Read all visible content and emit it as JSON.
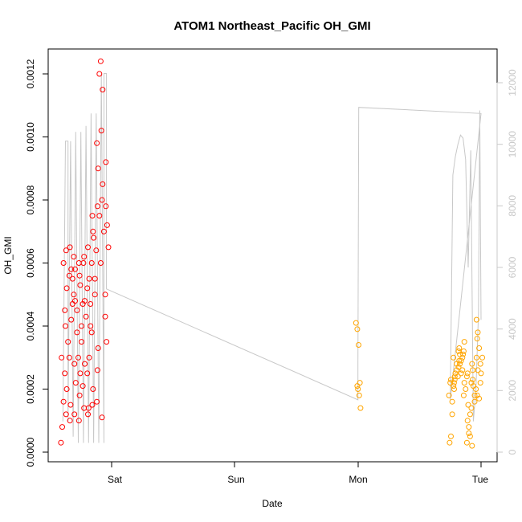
{
  "chart_data": {
    "type": "scatter",
    "title": "ATOM1 Northeast_Pacific OH_GMI",
    "xlabel": "Date",
    "ylabel": "OH_GMI",
    "x_ticks": [
      "Sat",
      "Sun",
      "Mon",
      "Tue"
    ],
    "xlim": [
      "Fri 14:00",
      "Tue 03:00"
    ],
    "ylim": [
      0,
      0.00125
    ],
    "y_ticks": [
      "0.0000",
      "0.0002",
      "0.0004",
      "0.0006",
      "0.0008",
      "0.0010",
      "0.0012"
    ],
    "y2lim": [
      0,
      12500
    ],
    "y2_ticks": [
      "0",
      "2000",
      "4000",
      "6000",
      "8000",
      "10000",
      "12000"
    ],
    "grid": false,
    "colors": {
      "series_a": "#ff0000",
      "series_b": "#ffa500",
      "altitude": "#c8c8c8"
    },
    "series": [
      {
        "marker": "circle",
        "color": "#ff0000",
        "points": [
          [
            "Fri 14:30",
            3e-05
          ],
          [
            "Fri 14:30",
            8e-05
          ],
          [
            "Fri 14:30",
            0.00016
          ],
          [
            "Fri 14:30",
            0.00025
          ],
          [
            "Fri 14:30",
            0.0003
          ],
          [
            "Fri 15:00",
            0.0004
          ],
          [
            "Fri 15:00",
            0.00052
          ],
          [
            "Fri 15:00",
            0.0006
          ],
          [
            "Fri 15:00",
            0.00045
          ],
          [
            "Fri 15:00",
            0.00012
          ],
          [
            "Fri 15:30",
            0.0001
          ],
          [
            "Fri 15:30",
            0.0002
          ],
          [
            "Fri 15:30",
            0.00035
          ],
          [
            "Fri 15:30",
            0.00056
          ],
          [
            "Fri 15:30",
            0.00064
          ],
          [
            "Fri 16:00",
            0.00065
          ],
          [
            "Fri 16:00",
            0.00058
          ],
          [
            "Fri 16:00",
            0.00047
          ],
          [
            "Fri 16:00",
            0.0003
          ],
          [
            "Fri 16:00",
            0.00015
          ],
          [
            "Fri 16:30",
            0.00028
          ],
          [
            "Fri 16:30",
            0.00042
          ],
          [
            "Fri 16:30",
            0.00055
          ],
          [
            "Fri 16:30",
            0.00062
          ],
          [
            "Fri 16:30",
            0.00048
          ],
          [
            "Fri 17:00",
            0.00012
          ],
          [
            "Fri 17:00",
            0.00022
          ],
          [
            "Fri 17:00",
            0.00038
          ],
          [
            "Fri 17:00",
            0.0005
          ],
          [
            "Fri 17:00",
            0.00058
          ],
          [
            "Fri 17:30",
            0.0006
          ],
          [
            "Fri 17:30",
            0.00053
          ],
          [
            "Fri 17:30",
            0.00045
          ],
          [
            "Fri 17:30",
            0.0003
          ],
          [
            "Fri 17:30",
            0.00018
          ],
          [
            "Fri 18:00",
            0.0001
          ],
          [
            "Fri 18:00",
            0.00025
          ],
          [
            "Fri 18:00",
            0.0004
          ],
          [
            "Fri 18:00",
            0.00047
          ],
          [
            "Fri 18:00",
            0.00056
          ],
          [
            "Fri 18:30",
            0.0006
          ],
          [
            "Fri 18:30",
            0.00048
          ],
          [
            "Fri 18:30",
            0.00035
          ],
          [
            "Fri 18:30",
            0.00021
          ],
          [
            "Fri 18:30",
            0.00014
          ],
          [
            "Fri 19:00",
            0.00012
          ],
          [
            "Fri 19:00",
            0.00028
          ],
          [
            "Fri 19:00",
            0.00043
          ],
          [
            "Fri 19:00",
            0.00052
          ],
          [
            "Fri 19:00",
            0.00062
          ],
          [
            "Fri 19:30",
            0.00065
          ],
          [
            "Fri 19:30",
            0.00055
          ],
          [
            "Fri 19:30",
            0.0004
          ],
          [
            "Fri 19:30",
            0.00025
          ],
          [
            "Fri 19:30",
            0.00014
          ],
          [
            "Fri 20:00",
            0.00015
          ],
          [
            "Fri 20:00",
            0.0003
          ],
          [
            "Fri 20:00",
            0.00047
          ],
          [
            "Fri 20:00",
            0.0006
          ],
          [
            "Fri 20:00",
            0.0007
          ],
          [
            "Fri 20:30",
            0.00075
          ],
          [
            "Fri 20:30",
            0.00068
          ],
          [
            "Fri 20:30",
            0.00055
          ],
          [
            "Fri 20:30",
            0.00038
          ],
          [
            "Fri 20:30",
            0.0002
          ],
          [
            "Fri 21:00",
            0.00016
          ],
          [
            "Fri 21:00",
            0.00033
          ],
          [
            "Fri 21:00",
            0.0005
          ],
          [
            "Fri 21:00",
            0.00064
          ],
          [
            "Fri 21:00",
            0.00078
          ],
          [
            "Fri 21:30",
            0.00098
          ],
          [
            "Fri 21:30",
            0.0009
          ],
          [
            "Fri 21:30",
            0.00075
          ],
          [
            "Fri 21:30",
            0.0006
          ],
          [
            "Fri 21:30",
            0.00026
          ],
          [
            "Fri 22:00",
            0.00102
          ],
          [
            "Fri 22:00",
            0.00115
          ],
          [
            "Fri 22:00",
            0.0012
          ],
          [
            "Fri 22:00",
            0.00124
          ],
          [
            "Fri 22:00",
            0.0008
          ],
          [
            "Fri 22:30",
            0.00092
          ],
          [
            "Fri 22:30",
            0.00085
          ],
          [
            "Fri 22:30",
            0.0007
          ],
          [
            "Fri 22:30",
            0.0005
          ],
          [
            "Fri 22:30",
            0.00011
          ],
          [
            "Fri 23:00",
            0.00078
          ],
          [
            "Fri 23:00",
            0.00072
          ],
          [
            "Fri 23:00",
            0.00065
          ],
          [
            "Fri 23:00",
            0.00043
          ],
          [
            "Fri 23:00",
            0.00035
          ]
        ]
      },
      {
        "marker": "circle",
        "color": "#ffa500",
        "points": [
          [
            "Mon 00:00",
            0.00041
          ],
          [
            "Mon 00:00",
            0.00039
          ],
          [
            "Mon 00:00",
            0.00034
          ],
          [
            "Mon 00:00",
            0.00022
          ],
          [
            "Mon 00:15",
            0.0002
          ],
          [
            "Mon 00:15",
            0.00018
          ],
          [
            "Mon 00:15",
            0.00014
          ],
          [
            "Mon 00:15",
            0.00021
          ],
          [
            "Mon 18:00",
            3e-05
          ],
          [
            "Mon 18:00",
            5e-05
          ],
          [
            "Mon 18:00",
            0.00012
          ],
          [
            "Mon 18:00",
            0.00018
          ],
          [
            "Mon 18:00",
            0.00022
          ],
          [
            "Mon 18:30",
            0.0002
          ],
          [
            "Mon 18:30",
            0.00023
          ],
          [
            "Mon 18:30",
            0.00016
          ],
          [
            "Mon 18:30",
            0.00021
          ],
          [
            "Mon 18:30",
            0.00024
          ],
          [
            "Mon 19:00",
            0.00022
          ],
          [
            "Mon 19:00",
            0.00025
          ],
          [
            "Mon 19:00",
            0.00028
          ],
          [
            "Mon 19:00",
            0.0003
          ],
          [
            "Mon 19:00",
            0.00023
          ],
          [
            "Mon 19:30",
            0.00027
          ],
          [
            "Mon 19:30",
            0.00031
          ],
          [
            "Mon 19:30",
            0.00026
          ],
          [
            "Mon 19:30",
            0.00024
          ],
          [
            "Mon 19:30",
            0.00029
          ],
          [
            "Mon 20:00",
            0.00032
          ],
          [
            "Mon 20:00",
            0.00028
          ],
          [
            "Mon 20:00",
            0.00025
          ],
          [
            "Mon 20:00",
            0.0003
          ],
          [
            "Mon 20:00",
            0.00033
          ],
          [
            "Mon 20:30",
            0.00031
          ],
          [
            "Mon 20:30",
            0.00035
          ],
          [
            "Mon 20:30",
            0.00029
          ],
          [
            "Mon 20:30",
            0.00026
          ],
          [
            "Mon 20:30",
            0.00032
          ],
          [
            "Mon 21:00",
            0.00025
          ],
          [
            "Mon 21:00",
            0.00022
          ],
          [
            "Mon 21:00",
            0.0002
          ],
          [
            "Mon 21:00",
            0.00024
          ],
          [
            "Mon 21:00",
            0.00018
          ],
          [
            "Mon 21:30",
            0.0001
          ],
          [
            "Mon 21:30",
            8e-05
          ],
          [
            "Mon 21:30",
            5e-05
          ],
          [
            "Mon 21:30",
            3e-05
          ],
          [
            "Mon 21:30",
            0.00015
          ],
          [
            "Mon 22:00",
            2e-05
          ],
          [
            "Mon 22:00",
            6e-05
          ],
          [
            "Mon 22:00",
            0.00012
          ],
          [
            "Mon 22:00",
            0.00022
          ],
          [
            "Mon 22:00",
            0.00026
          ],
          [
            "Mon 22:30",
            0.00028
          ],
          [
            "Mon 22:30",
            0.00021
          ],
          [
            "Mon 22:30",
            0.00018
          ],
          [
            "Mon 22:30",
            0.00014
          ],
          [
            "Mon 22:30",
            0.00023
          ],
          [
            "Mon 23:00",
            0.0003
          ],
          [
            "Mon 23:00",
            0.00026
          ],
          [
            "Mon 23:00",
            0.00016
          ],
          [
            "Mon 23:00",
            0.0002
          ],
          [
            "Mon 23:00",
            0.00036
          ],
          [
            "Mon 23:30",
            0.00042
          ],
          [
            "Mon 23:30",
            0.00038
          ],
          [
            "Mon 23:30",
            0.00033
          ],
          [
            "Mon 23:30",
            0.00028
          ],
          [
            "Mon 23:30",
            0.00018
          ],
          [
            "Tue 00:00",
            0.00025
          ],
          [
            "Tue 00:00",
            0.0003
          ],
          [
            "Tue 00:00",
            0.00017
          ],
          [
            "Tue 00:00",
            0.00022
          ]
        ]
      }
    ],
    "altitude_line": {
      "axis": "right",
      "color": "#c8c8c8",
      "points": [
        [
          "Fri 14:30",
          1000
        ],
        [
          "Fri 15:00",
          10100
        ],
        [
          "Fri 15:30",
          10100
        ],
        [
          "Fri 15:30",
          1000
        ],
        [
          "Fri 16:00",
          10100
        ],
        [
          "Fri 16:30",
          500
        ],
        [
          "Fri 17:00",
          10400
        ],
        [
          "Fri 17:30",
          300
        ],
        [
          "Fri 18:00",
          10400
        ],
        [
          "Fri 18:30",
          300
        ],
        [
          "Fri 19:00",
          10600
        ],
        [
          "Fri 19:30",
          300
        ],
        [
          "Fri 20:00",
          11000
        ],
        [
          "Fri 20:30",
          300
        ],
        [
          "Fri 21:00",
          11000
        ],
        [
          "Fri 21:30",
          300
        ],
        [
          "Fri 22:00",
          12300
        ],
        [
          "Fri 22:30",
          300
        ],
        [
          "Fri 22:30",
          12300
        ],
        [
          "Fri 23:00",
          12300
        ],
        [
          "Fri 23:00",
          5300
        ],
        [
          "Mon 00:00",
          1700
        ],
        [
          "Mon 00:00",
          2900
        ],
        [
          "Mon 00:05",
          7000
        ],
        [
          "Mon 00:10",
          11200
        ],
        [
          "Tue 00:00",
          11000
        ],
        [
          "Mon 18:00",
          1700
        ],
        [
          "Mon 18:30",
          9000
        ],
        [
          "Mon 19:00",
          9600
        ],
        [
          "Mon 19:30",
          10000
        ],
        [
          "Mon 20:00",
          10300
        ],
        [
          "Mon 20:30",
          10200
        ],
        [
          "Mon 21:00",
          9500
        ],
        [
          "Mon 21:30",
          6000
        ],
        [
          "Mon 22:00",
          9800
        ],
        [
          "Mon 22:30",
          1000
        ],
        [
          "Mon 23:00",
          2000
        ],
        [
          "Mon 23:30",
          4500
        ],
        [
          "Mon 23:45",
          11100
        ],
        [
          "Tue 00:00",
          4300
        ]
      ]
    }
  }
}
